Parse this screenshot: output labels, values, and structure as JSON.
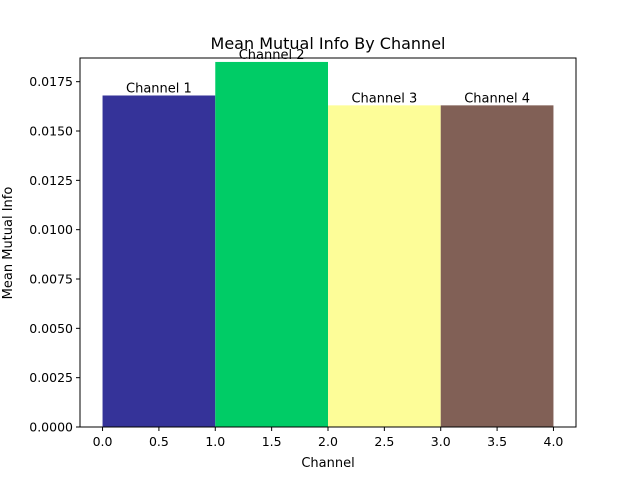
{
  "chart_data": {
    "type": "bar",
    "title": "Mean Mutual Info By Channel",
    "xlabel": "Channel",
    "ylabel": "Mean Mutual Info",
    "xlim": [
      -0.2,
      4.2
    ],
    "ylim": [
      0,
      0.0187
    ],
    "xticks": [
      "0.0",
      "0.5",
      "1.0",
      "1.5",
      "2.0",
      "2.5",
      "3.0",
      "3.5",
      "4.0"
    ],
    "xtick_values": [
      0,
      0.5,
      1,
      1.5,
      2,
      2.5,
      3,
      3.5,
      4
    ],
    "yticks": [
      "0.0000",
      "0.0025",
      "0.0050",
      "0.0075",
      "0.0100",
      "0.0125",
      "0.0150",
      "0.0175"
    ],
    "ytick_values": [
      0,
      0.0025,
      0.005,
      0.0075,
      0.01,
      0.0125,
      0.015,
      0.0175
    ],
    "grid": false,
    "bars": [
      {
        "label": "Channel 1",
        "x_start": 0,
        "x_end": 1,
        "value": 0.0168,
        "color": "#353399"
      },
      {
        "label": "Channel 2",
        "x_start": 1,
        "x_end": 2,
        "value": 0.0185,
        "color": "#00cc66"
      },
      {
        "label": "Channel 3",
        "x_start": 2,
        "x_end": 3,
        "value": 0.0163,
        "color": "#fdfd98"
      },
      {
        "label": "Channel 4",
        "x_start": 3,
        "x_end": 4,
        "value": 0.0163,
        "color": "#816056"
      }
    ]
  }
}
